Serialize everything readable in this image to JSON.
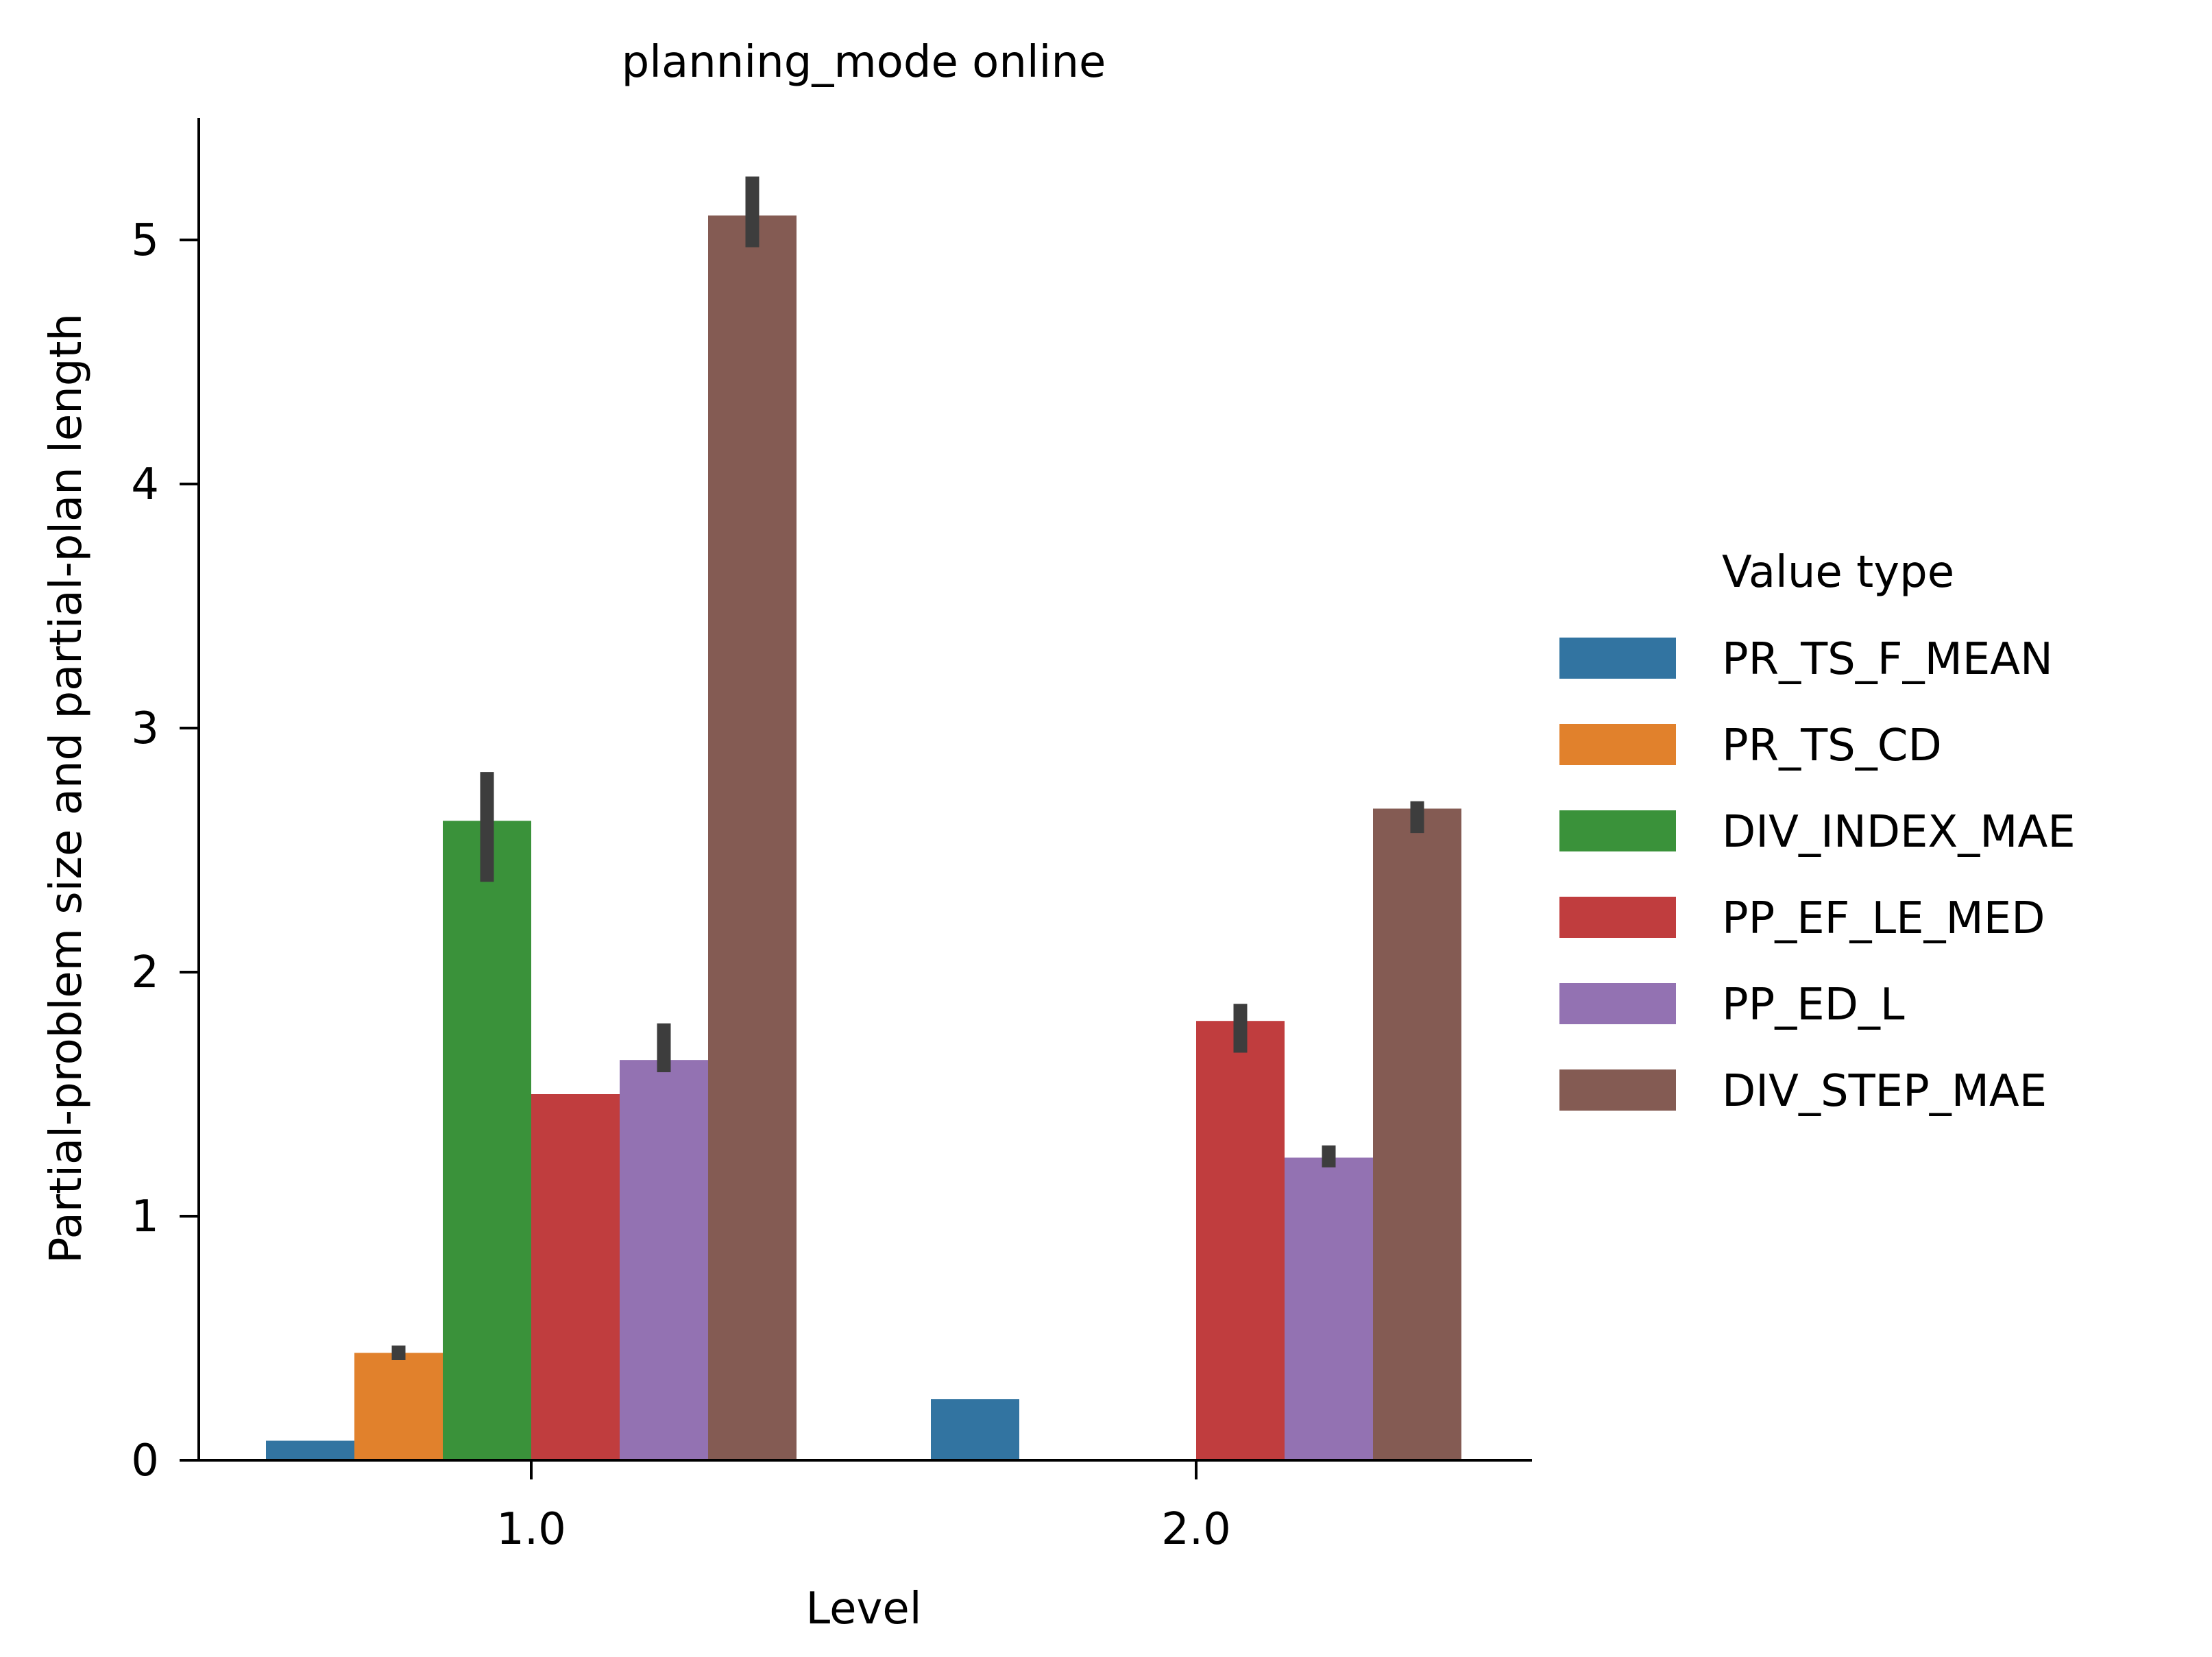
{
  "chart_data": {
    "type": "bar",
    "title": "planning_mode online",
    "xlabel": "Level",
    "ylabel": "Partial-problem size and partial-plan length",
    "categories": [
      "1.0",
      "2.0"
    ],
    "ylim": [
      0,
      5.5
    ],
    "yticks": [
      0,
      1,
      2,
      3,
      4,
      5
    ],
    "grid": false,
    "legend": {
      "title": "Value type",
      "placement": "right"
    },
    "series": [
      {
        "name": "PR_TS_F_MEAN",
        "color": "#3274a1",
        "values": [
          0.08,
          0.25
        ],
        "err_low": [
          null,
          null
        ],
        "err_high": [
          null,
          null
        ]
      },
      {
        "name": "PR_TS_CD",
        "color": "#e1812c",
        "values": [
          0.44,
          0
        ],
        "err_low": [
          0.41,
          null
        ],
        "err_high": [
          0.47,
          null
        ]
      },
      {
        "name": "DIV_INDEX_MAE",
        "color": "#3a923a",
        "values": [
          2.62,
          0
        ],
        "err_low": [
          2.37,
          null
        ],
        "err_high": [
          2.82,
          null
        ]
      },
      {
        "name": "PP_EF_LE_MED",
        "color": "#c03d3e",
        "values": [
          1.5,
          1.8
        ],
        "err_low": [
          null,
          1.67
        ],
        "err_high": [
          null,
          1.87
        ]
      },
      {
        "name": "PP_ED_L",
        "color": "#9372b2",
        "values": [
          1.64,
          1.24
        ],
        "err_low": [
          1.59,
          1.2
        ],
        "err_high": [
          1.79,
          1.29
        ]
      },
      {
        "name": "DIV_STEP_MAE",
        "color": "#845b53",
        "values": [
          5.1,
          2.67
        ],
        "err_low": [
          4.97,
          2.57
        ],
        "err_high": [
          5.26,
          2.7
        ]
      }
    ]
  }
}
